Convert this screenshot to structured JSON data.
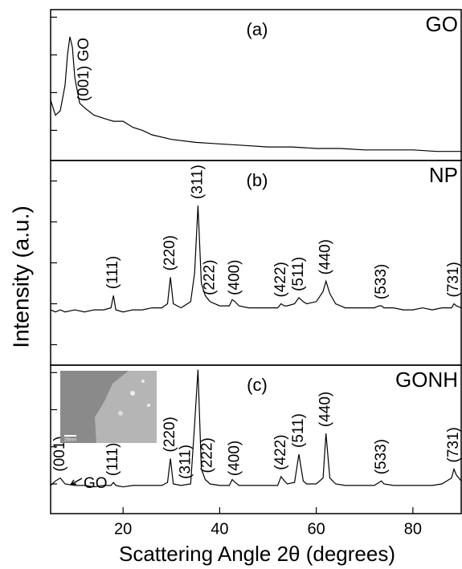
{
  "chart_data": [
    {
      "type": "line",
      "panel_label": "(a)",
      "name": "GO",
      "color": "#000000",
      "xlim": [
        5,
        90
      ],
      "ylim": [
        0,
        100
      ],
      "yticks": [
        20,
        45,
        70,
        95
      ],
      "x": [
        5,
        6,
        7,
        8,
        8.5,
        9,
        9.5,
        10,
        11,
        12,
        14,
        16,
        18,
        20,
        22,
        24,
        26,
        30,
        35,
        40,
        45,
        50,
        55,
        60,
        65,
        70,
        75,
        80,
        85,
        90
      ],
      "values": [
        40,
        30,
        33,
        50,
        70,
        82,
        75,
        55,
        38,
        35,
        30,
        28,
        26,
        26,
        22,
        20,
        17,
        14,
        12,
        11,
        10,
        9,
        9,
        8,
        8,
        7,
        7,
        7,
        6,
        6
      ],
      "annotations": [
        {
          "label": "(001) GO",
          "x": 12
        }
      ]
    },
    {
      "type": "line",
      "panel_label": "(b)",
      "name": "NP",
      "color": "#000000",
      "ylabel": "Intensity (a.u.)",
      "xlim": [
        5,
        90
      ],
      "ylim": [
        0,
        100
      ],
      "yticks": [
        10,
        30,
        50,
        70,
        90
      ],
      "x": [
        5,
        6,
        7,
        8,
        10,
        12,
        14,
        16,
        17.5,
        18,
        18.5,
        20,
        22,
        24,
        26,
        28,
        29.2,
        29.8,
        30.4,
        32,
        34,
        34.8,
        35.5,
        36.2,
        37,
        38,
        40,
        42,
        42.6,
        43.2,
        44,
        46,
        48,
        50,
        52,
        52.7,
        53.4,
        54,
        55.5,
        56.4,
        57.3,
        58,
        60,
        61.4,
        62,
        62.8,
        64,
        66,
        68,
        70,
        72,
        73,
        73.5,
        74,
        76,
        78,
        80,
        82,
        84,
        86,
        88,
        88.5,
        89,
        90
      ],
      "values": [
        27,
        26,
        27,
        26,
        27,
        26,
        27,
        27,
        28,
        34,
        27,
        26,
        27,
        27,
        28,
        28,
        30,
        43,
        30,
        28,
        31,
        45,
        78,
        40,
        34,
        31,
        29,
        29,
        32,
        31,
        29,
        28,
        28,
        28,
        28,
        30,
        29,
        29,
        30,
        33,
        31,
        30,
        31,
        36,
        41,
        35,
        30,
        28,
        28,
        28,
        28,
        29,
        29,
        28,
        28,
        27,
        27,
        28,
        27,
        28,
        28,
        30,
        29,
        28
      ],
      "annotations": [
        {
          "label": "(111)",
          "x": 18
        },
        {
          "label": "(220)",
          "x": 29.8
        },
        {
          "label": "(311)",
          "x": 35.5
        },
        {
          "label": "(222)",
          "x": 38
        },
        {
          "label": "(400)",
          "x": 43.2
        },
        {
          "label": "(422)",
          "x": 52.7
        },
        {
          "label": "(511)",
          "x": 56.4
        },
        {
          "label": "(440)",
          "x": 62
        },
        {
          "label": "(533)",
          "x": 73.5
        },
        {
          "label": "(731)",
          "x": 88.5
        }
      ]
    },
    {
      "type": "line",
      "panel_label": "(c)",
      "name": "GONH",
      "color": "#000000",
      "xlabel": "Scattering Angle 2θ (degrees)",
      "inset_scale": "200nm",
      "arrow_label": "GO",
      "xlim": [
        5,
        90
      ],
      "ylim": [
        0,
        100
      ],
      "yticks": [
        20,
        45,
        70,
        95
      ],
      "xticks": [
        20,
        40,
        60,
        80
      ],
      "x": [
        5,
        6,
        7,
        8,
        10,
        12,
        14,
        16,
        17.5,
        18,
        18.5,
        20,
        22,
        24,
        26,
        28,
        29.2,
        29.8,
        30.4,
        32,
        34,
        34.8,
        35.5,
        36.2,
        37,
        38,
        40,
        42,
        42.6,
        43.2,
        44,
        46,
        48,
        50,
        52,
        52.7,
        53.4,
        54,
        55.5,
        56.4,
        57.3,
        58,
        60,
        61.4,
        62,
        62.8,
        64,
        66,
        68,
        70,
        72,
        73,
        73.5,
        74,
        76,
        78,
        80,
        82,
        84,
        86,
        88,
        88.5,
        89,
        90
      ],
      "values": [
        19,
        22,
        24,
        20,
        19,
        19,
        18,
        19,
        19,
        21,
        19,
        18,
        19,
        19,
        19,
        19,
        21,
        37,
        20,
        19,
        20,
        60,
        97,
        30,
        23,
        20,
        19,
        19,
        23,
        21,
        19,
        19,
        19,
        19,
        19,
        25,
        22,
        20,
        21,
        40,
        22,
        20,
        20,
        24,
        54,
        24,
        20,
        19,
        19,
        19,
        19,
        21,
        22,
        20,
        19,
        19,
        19,
        19,
        19,
        20,
        24,
        30,
        26,
        22
      ],
      "annotations": [
        {
          "label": "(001)",
          "x": 7
        },
        {
          "label": "(111)",
          "x": 18
        },
        {
          "label": "(220)",
          "x": 29.8
        },
        {
          "label": "(311)",
          "x": 33
        },
        {
          "label": "(222)",
          "x": 37.5
        },
        {
          "label": "(400)",
          "x": 43.2
        },
        {
          "label": "(422)",
          "x": 52.7
        },
        {
          "label": "(511)",
          "x": 56.4
        },
        {
          "label": "(440)",
          "x": 62
        },
        {
          "label": "(533)",
          "x": 73.5
        },
        {
          "label": "(731)",
          "x": 88.5
        }
      ]
    }
  ]
}
